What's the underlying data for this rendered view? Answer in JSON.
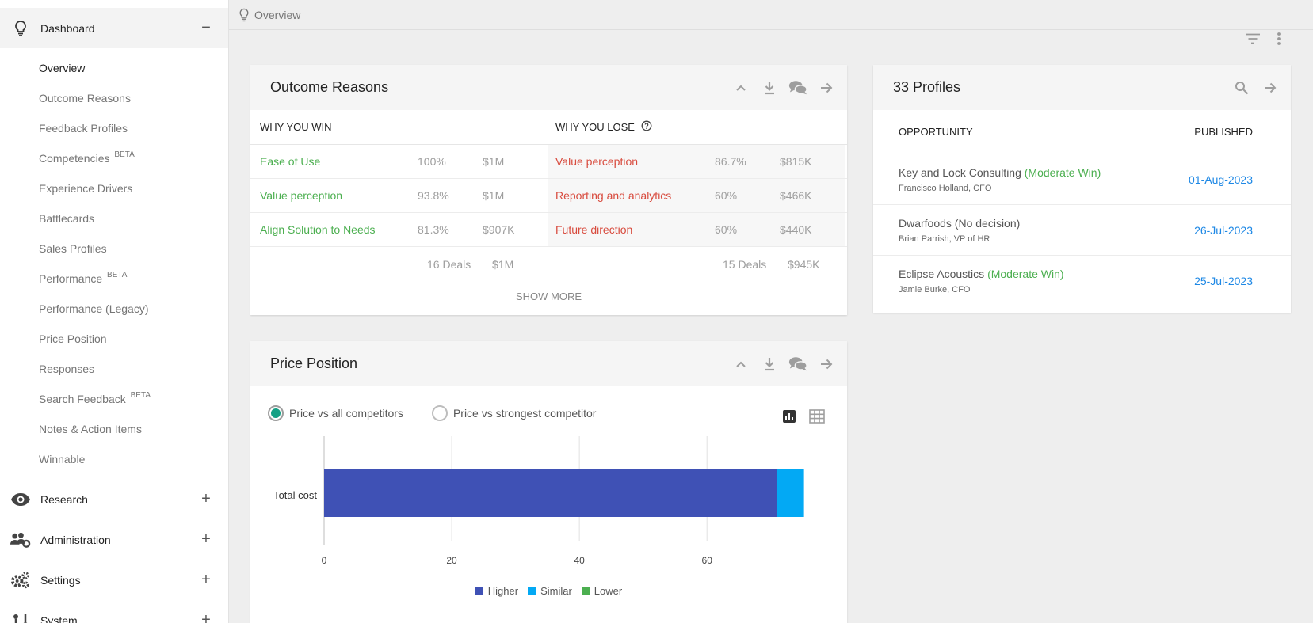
{
  "breadcrumb": {
    "label": "Overview"
  },
  "sidebar": {
    "dashboard": {
      "label": "Dashboard",
      "toggle": "−",
      "items": [
        {
          "label": "Overview"
        },
        {
          "label": "Outcome Reasons"
        },
        {
          "label": "Feedback Profiles"
        },
        {
          "label": "Competencies",
          "badge": "BETA"
        },
        {
          "label": "Experience Drivers"
        },
        {
          "label": "Battlecards"
        },
        {
          "label": "Sales Profiles"
        },
        {
          "label": "Performance",
          "badge": "BETA"
        },
        {
          "label": "Performance (Legacy)"
        },
        {
          "label": "Price Position"
        },
        {
          "label": "Responses"
        },
        {
          "label": "Search Feedback",
          "badge": "BETA"
        },
        {
          "label": "Notes & Action Items"
        },
        {
          "label": "Winnable"
        }
      ]
    },
    "research": {
      "label": "Research",
      "toggle": "+"
    },
    "administration": {
      "label": "Administration",
      "toggle": "+"
    },
    "settings": {
      "label": "Settings",
      "toggle": "+"
    },
    "system": {
      "label": "System",
      "toggle": "+"
    }
  },
  "outcome": {
    "title": "Outcome Reasons",
    "win_header": "WHY YOU WIN",
    "lose_header": "WHY YOU LOSE",
    "rows": [
      {
        "win_name": "Ease of Use",
        "win_pct": "100%",
        "win_amt": "$1M",
        "lose_name": "Value perception",
        "lose_pct": "86.7%",
        "lose_amt": "$815K"
      },
      {
        "win_name": "Value perception",
        "win_pct": "93.8%",
        "win_amt": "$1M",
        "lose_name": "Reporting and analytics",
        "lose_pct": "60%",
        "lose_amt": "$466K"
      },
      {
        "win_name": "Align Solution to Needs",
        "win_pct": "81.3%",
        "win_amt": "$907K",
        "lose_name": "Future direction",
        "lose_pct": "60%",
        "lose_amt": "$440K"
      }
    ],
    "totals": {
      "win_deals": "16 Deals",
      "win_amt": "$1M",
      "lose_deals": "15 Deals",
      "lose_amt": "$945K"
    },
    "show_more": "SHOW MORE"
  },
  "profiles": {
    "title": "33 Profiles",
    "col_opportunity": "OPPORTUNITY",
    "col_published": "PUBLISHED",
    "rows": [
      {
        "name": "Key and Lock Consulting",
        "outcome": "(Moderate Win)",
        "contact": "Francisco Holland, CFO",
        "date": "01-Aug-2023"
      },
      {
        "name": "Dwarfoods (No decision)",
        "outcome": "",
        "contact": "Brian Parrish, VP of HR",
        "date": "26-Jul-2023"
      },
      {
        "name": "Eclipse Acoustics",
        "outcome": "(Moderate Win)",
        "contact": "Jamie Burke, CFO",
        "date": "25-Jul-2023"
      }
    ]
  },
  "price": {
    "title": "Price Position",
    "option_all": "Price vs all competitors",
    "option_strongest": "Price vs strongest competitor",
    "selected": "Price vs all competitors"
  },
  "colors": {
    "higher": "#3f51b5",
    "similar": "#03a9f4",
    "lower": "#4caf50",
    "win": "#4caf50",
    "lose": "#d84b3e",
    "link": "#1e88e5",
    "radio": "#16a085"
  },
  "icons": {
    "breadcrumb": "lightbulb-icon",
    "page_tools": [
      "filter-icon",
      "more-vert-icon"
    ],
    "card_actions": [
      "chevron-up-icon",
      "download-icon",
      "comments-icon",
      "arrow-right-icon"
    ],
    "profiles_actions": [
      "search-icon",
      "arrow-right-icon"
    ],
    "chart_view": [
      "bar-chart-icon",
      "grid-icon"
    ]
  },
  "chart_data": {
    "type": "bar",
    "orientation": "horizontal",
    "stacked": true,
    "categories": [
      "Total cost"
    ],
    "series": [
      {
        "name": "Higher",
        "values": [
          71
        ]
      },
      {
        "name": "Similar",
        "values": [
          4.2
        ]
      },
      {
        "name": "Lower",
        "values": [
          0
        ]
      }
    ],
    "xlim": [
      0,
      75
    ],
    "x_ticks": [
      0,
      20,
      40,
      60
    ],
    "grid": true,
    "legend": "bottom"
  }
}
